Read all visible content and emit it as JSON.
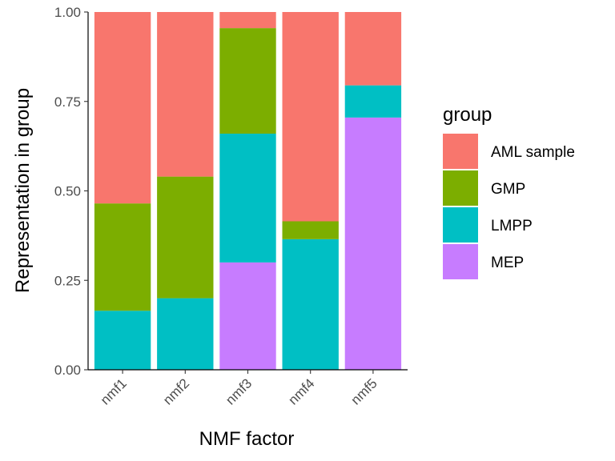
{
  "chart_data": {
    "type": "bar",
    "stacked": true,
    "categories": [
      "nmf1",
      "nmf2",
      "nmf3",
      "nmf4",
      "nmf5"
    ],
    "series": [
      {
        "name": "MEP",
        "color": "#C77CFF",
        "values": [
          0.0,
          0.0,
          0.3,
          0.0,
          0.705
        ]
      },
      {
        "name": "LMPP",
        "color": "#00BFC4",
        "values": [
          0.165,
          0.2,
          0.36,
          0.365,
          0.09
        ]
      },
      {
        "name": "GMP",
        "color": "#7CAE00",
        "values": [
          0.3,
          0.34,
          0.295,
          0.05,
          0.0
        ]
      },
      {
        "name": "AML sample",
        "color": "#F8766D",
        "values": [
          0.535,
          0.46,
          0.045,
          0.585,
          0.205
        ]
      }
    ],
    "xlabel": "NMF factor",
    "ylabel": "Representation in group",
    "ylim": [
      0,
      1
    ],
    "yticks": [
      "0.00",
      "0.25",
      "0.50",
      "0.75",
      "1.00"
    ],
    "legend": {
      "title": "group",
      "position": "right",
      "entries": [
        "AML sample",
        "GMP",
        "LMPP",
        "MEP"
      ]
    },
    "grid": false
  }
}
